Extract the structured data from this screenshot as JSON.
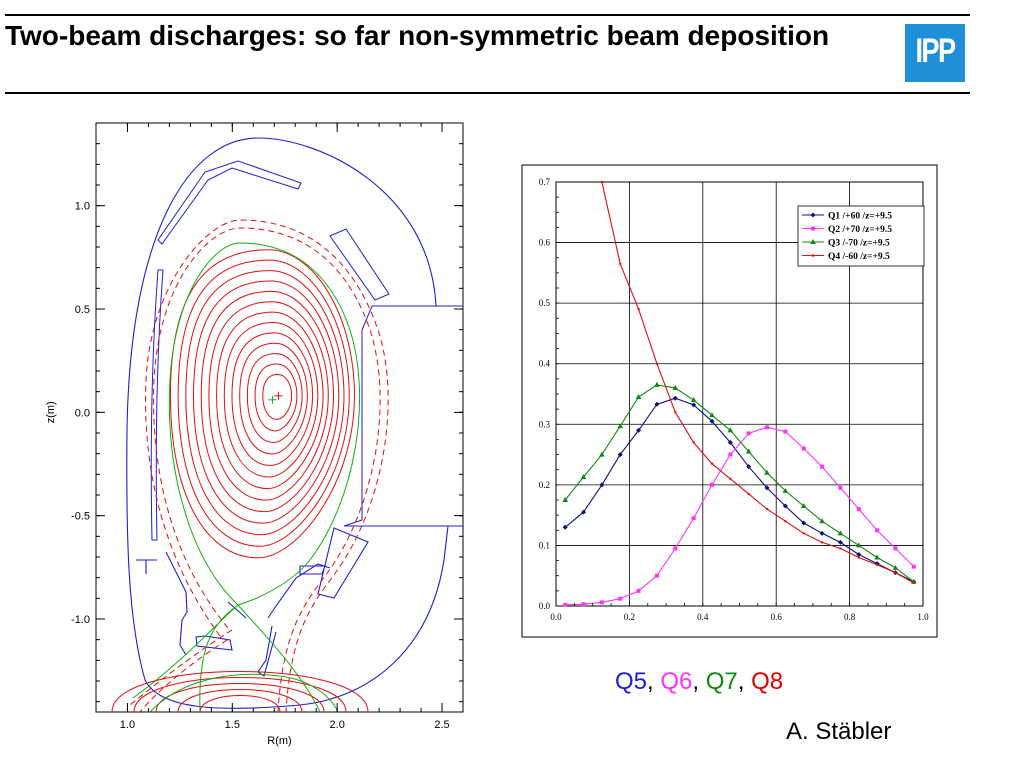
{
  "slide": {
    "title": "Two-beam discharges: so far non-symmetric beam deposition",
    "logo_text": "IPP",
    "logo_color": "#1f8fd8",
    "author": "A. Stäbler",
    "qlabels": [
      {
        "text": "Q5",
        "color": "#1f1fd0"
      },
      {
        "text": "Q6",
        "color": "#ff33ff"
      },
      {
        "text": "Q7",
        "color": "#118811"
      },
      {
        "text": "Q8",
        "color": "#dd0000"
      }
    ],
    "separator": ", "
  },
  "chart_data": [
    {
      "type": "diagram",
      "xlabel": "R(m)",
      "ylabel": "z(m)",
      "xlim": [
        0.85,
        2.6
      ],
      "ylim": [
        -1.45,
        1.4
      ],
      "x_ticks": [
        "1.0",
        "1.5",
        "2.0",
        "2.5"
      ],
      "x_tick_values": [
        1.0,
        1.5,
        2.0,
        2.5
      ],
      "y_ticks": [
        "1.0",
        "0.5",
        "0.0",
        "-0.5",
        "-1.0"
      ],
      "y_tick_values": [
        1.0,
        0.5,
        0.0,
        -0.5,
        -1.0
      ],
      "magnetic_axis": {
        "R": 1.72,
        "z": 0.08
      },
      "colors": {
        "vessel": "#1f1fd0",
        "flux": "#e01010",
        "separatrix": "#10b010"
      }
    },
    {
      "type": "line",
      "xlim": [
        0.0,
        1.0
      ],
      "ylim": [
        0.0,
        0.7
      ],
      "x_ticks": [
        "0.0",
        "0.2",
        "0.4",
        "0.6",
        "0.8",
        "1.0"
      ],
      "x_tick_values": [
        0.0,
        0.2,
        0.4,
        0.6,
        0.8,
        1.0
      ],
      "y_ticks": [
        "0.0",
        "0.1",
        "0.2",
        "0.3",
        "0.4",
        "0.5",
        "0.6",
        "0.7"
      ],
      "y_tick_values": [
        0.0,
        0.1,
        0.2,
        0.3,
        0.4,
        0.5,
        0.6,
        0.7
      ],
      "grid": true,
      "legend_position": "top-right",
      "series": [
        {
          "name": "Q1 /+60 /z=+9.5",
          "color": "#101080",
          "x": [
            0.025,
            0.075,
            0.125,
            0.175,
            0.225,
            0.275,
            0.325,
            0.375,
            0.425,
            0.475,
            0.525,
            0.575,
            0.625,
            0.675,
            0.725,
            0.775,
            0.825,
            0.875,
            0.925,
            0.975
          ],
          "y": [
            0.13,
            0.155,
            0.2,
            0.25,
            0.29,
            0.333,
            0.343,
            0.332,
            0.305,
            0.27,
            0.23,
            0.195,
            0.165,
            0.137,
            0.12,
            0.105,
            0.085,
            0.07,
            0.055,
            0.04
          ]
        },
        {
          "name": "Q2 /+70 /z=+9.5",
          "color": "#ff33ff",
          "x": [
            0.025,
            0.075,
            0.125,
            0.175,
            0.225,
            0.275,
            0.325,
            0.375,
            0.425,
            0.475,
            0.525,
            0.575,
            0.625,
            0.675,
            0.725,
            0.775,
            0.825,
            0.875,
            0.925,
            0.975
          ],
          "y": [
            0.002,
            0.003,
            0.006,
            0.012,
            0.025,
            0.05,
            0.095,
            0.145,
            0.2,
            0.25,
            0.285,
            0.295,
            0.288,
            0.26,
            0.23,
            0.195,
            0.16,
            0.125,
            0.095,
            0.065
          ]
        },
        {
          "name": "Q3 /-70 /z=+9.5",
          "color": "#118811",
          "x": [
            0.025,
            0.075,
            0.125,
            0.175,
            0.225,
            0.275,
            0.325,
            0.375,
            0.425,
            0.475,
            0.525,
            0.575,
            0.625,
            0.675,
            0.725,
            0.775,
            0.825,
            0.875,
            0.925,
            0.975
          ],
          "y": [
            0.175,
            0.213,
            0.25,
            0.297,
            0.345,
            0.365,
            0.36,
            0.34,
            0.315,
            0.29,
            0.255,
            0.22,
            0.19,
            0.165,
            0.14,
            0.12,
            0.1,
            0.08,
            0.063,
            0.04
          ]
        },
        {
          "name": "Q4 /-60 /z=+9.5",
          "color": "#dd1010",
          "x": [
            0.125,
            0.175,
            0.225,
            0.275,
            0.325,
            0.375,
            0.425,
            0.475,
            0.525,
            0.575,
            0.625,
            0.675,
            0.725,
            0.775,
            0.825,
            0.875,
            0.925,
            0.975
          ],
          "y": [
            0.7,
            0.565,
            0.49,
            0.4,
            0.32,
            0.27,
            0.235,
            0.21,
            0.185,
            0.16,
            0.14,
            0.12,
            0.105,
            0.095,
            0.08,
            0.068,
            0.055,
            0.038
          ]
        }
      ]
    }
  ]
}
